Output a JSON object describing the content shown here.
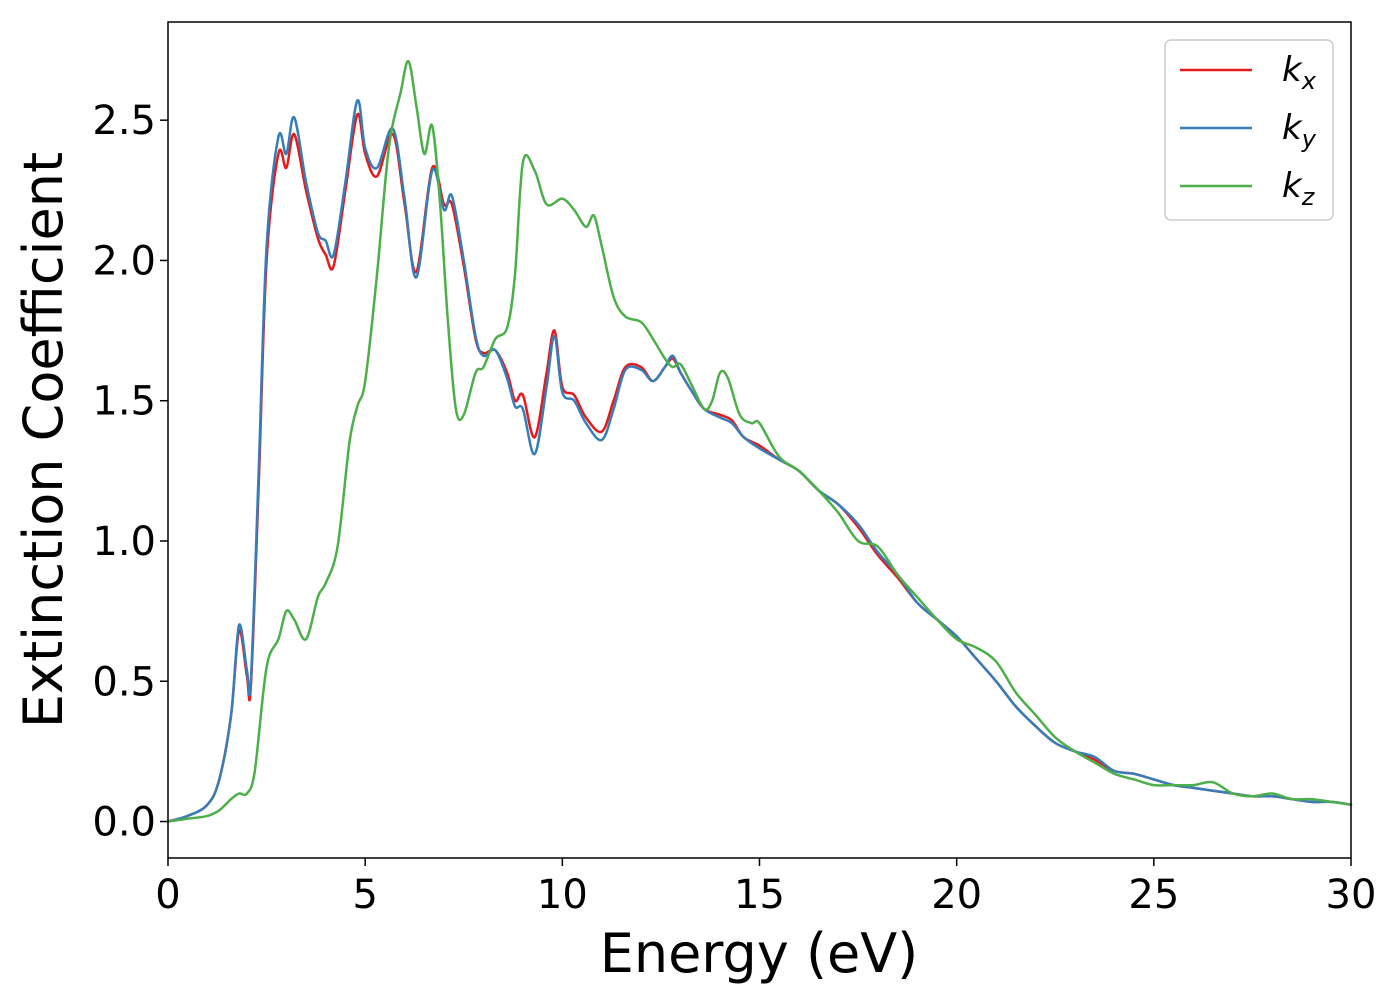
{
  "chart_data": {
    "type": "line",
    "xlabel": "Energy (eV)",
    "ylabel": "Extinction Coefficient",
    "xlim": [
      0,
      30
    ],
    "ylim": [
      -0.13,
      2.85
    ],
    "xticks": [
      0,
      5,
      10,
      15,
      20,
      25,
      30
    ],
    "xtick_labels": [
      "0",
      "5",
      "10",
      "15",
      "20",
      "25",
      "30"
    ],
    "yticks": [
      0.0,
      0.5,
      1.0,
      1.5,
      2.0,
      2.5
    ],
    "ytick_labels": [
      "0.0",
      "0.5",
      "1.0",
      "1.5",
      "2.0",
      "2.5"
    ],
    "grid": false,
    "legend_position": "top-right",
    "series": [
      {
        "name": "k",
        "subscript": "x",
        "color": "#e41a1c",
        "x": [
          0,
          0.5,
          1.0,
          1.3,
          1.6,
          1.8,
          2.0,
          2.1,
          2.3,
          2.5,
          2.8,
          3.0,
          3.2,
          3.5,
          3.8,
          4.0,
          4.2,
          4.5,
          4.8,
          5.0,
          5.3,
          5.7,
          6.0,
          6.3,
          6.7,
          7.0,
          7.2,
          7.5,
          7.8,
          8.0,
          8.3,
          8.6,
          8.8,
          9.0,
          9.3,
          9.6,
          9.8,
          10.0,
          10.3,
          10.6,
          11.0,
          11.3,
          11.6,
          12.0,
          12.3,
          12.6,
          12.8,
          13.0,
          13.3,
          13.6,
          14.0,
          14.3,
          14.6,
          15.0,
          15.5,
          16.0,
          16.5,
          17.0,
          17.5,
          18.0,
          18.5,
          19.0,
          19.5,
          20.0,
          20.5,
          21.0,
          21.5,
          22.0,
          22.5,
          23.0,
          23.5,
          24.0,
          24.5,
          25.0,
          25.5,
          26.0,
          26.5,
          27.0,
          27.5,
          28.0,
          28.5,
          29.0,
          29.5,
          30.0
        ],
        "y": [
          0.0,
          0.02,
          0.06,
          0.15,
          0.38,
          0.68,
          0.52,
          0.48,
          1.2,
          2.0,
          2.38,
          2.33,
          2.45,
          2.25,
          2.08,
          2.02,
          1.98,
          2.25,
          2.52,
          2.38,
          2.3,
          2.45,
          2.2,
          1.96,
          2.33,
          2.2,
          2.2,
          1.98,
          1.72,
          1.67,
          1.68,
          1.6,
          1.5,
          1.52,
          1.37,
          1.6,
          1.75,
          1.55,
          1.52,
          1.44,
          1.39,
          1.5,
          1.62,
          1.62,
          1.57,
          1.62,
          1.65,
          1.6,
          1.53,
          1.47,
          1.45,
          1.43,
          1.37,
          1.34,
          1.29,
          1.25,
          1.18,
          1.13,
          1.05,
          0.95,
          0.87,
          0.78,
          0.72,
          0.66,
          0.58,
          0.5,
          0.41,
          0.34,
          0.28,
          0.25,
          0.22,
          0.18,
          0.17,
          0.15,
          0.13,
          0.12,
          0.11,
          0.1,
          0.09,
          0.09,
          0.08,
          0.07,
          0.07,
          0.06
        ]
      },
      {
        "name": "k",
        "subscript": "y",
        "color": "#377eb8",
        "x": [
          0,
          0.5,
          1.0,
          1.3,
          1.6,
          1.8,
          2.0,
          2.1,
          2.3,
          2.5,
          2.8,
          3.0,
          3.2,
          3.5,
          3.8,
          4.0,
          4.2,
          4.5,
          4.8,
          5.0,
          5.3,
          5.7,
          6.0,
          6.3,
          6.7,
          7.0,
          7.2,
          7.5,
          7.8,
          8.0,
          8.3,
          8.6,
          8.8,
          9.0,
          9.3,
          9.6,
          9.8,
          10.0,
          10.3,
          10.6,
          11.0,
          11.3,
          11.6,
          12.0,
          12.3,
          12.6,
          12.8,
          13.0,
          13.3,
          13.6,
          14.0,
          14.3,
          14.6,
          15.0,
          15.5,
          16.0,
          16.5,
          17.0,
          17.5,
          18.0,
          18.5,
          19.0,
          19.5,
          20.0,
          20.5,
          21.0,
          21.5,
          22.0,
          22.5,
          23.0,
          23.5,
          24.0,
          24.5,
          25.0,
          25.5,
          26.0,
          26.5,
          27.0,
          27.5,
          28.0,
          28.5,
          29.0,
          29.5,
          30.0
        ],
        "y": [
          0.0,
          0.02,
          0.06,
          0.15,
          0.38,
          0.7,
          0.54,
          0.5,
          1.25,
          2.05,
          2.44,
          2.38,
          2.51,
          2.28,
          2.1,
          2.07,
          2.02,
          2.28,
          2.57,
          2.4,
          2.33,
          2.47,
          2.22,
          1.94,
          2.32,
          2.18,
          2.23,
          2.0,
          1.73,
          1.66,
          1.68,
          1.58,
          1.48,
          1.47,
          1.31,
          1.55,
          1.73,
          1.53,
          1.5,
          1.42,
          1.36,
          1.47,
          1.61,
          1.61,
          1.57,
          1.62,
          1.66,
          1.6,
          1.53,
          1.47,
          1.44,
          1.42,
          1.37,
          1.33,
          1.29,
          1.25,
          1.18,
          1.13,
          1.06,
          0.96,
          0.88,
          0.78,
          0.72,
          0.66,
          0.58,
          0.5,
          0.41,
          0.34,
          0.28,
          0.25,
          0.23,
          0.18,
          0.17,
          0.15,
          0.13,
          0.12,
          0.11,
          0.1,
          0.09,
          0.09,
          0.08,
          0.07,
          0.07,
          0.06
        ]
      },
      {
        "name": "k",
        "subscript": "z",
        "color": "#4daf4a",
        "x": [
          0,
          0.5,
          1.0,
          1.3,
          1.6,
          1.8,
          2.0,
          2.2,
          2.5,
          2.8,
          3.0,
          3.2,
          3.5,
          3.8,
          4.0,
          4.3,
          4.6,
          4.8,
          5.0,
          5.3,
          5.6,
          5.9,
          6.1,
          6.3,
          6.5,
          6.7,
          6.9,
          7.1,
          7.3,
          7.5,
          7.8,
          8.0,
          8.3,
          8.6,
          8.8,
          9.0,
          9.3,
          9.6,
          10.0,
          10.3,
          10.6,
          10.8,
          11.0,
          11.3,
          11.6,
          12.0,
          12.3,
          12.6,
          12.8,
          13.0,
          13.3,
          13.6,
          13.8,
          14.0,
          14.2,
          14.5,
          14.8,
          15.0,
          15.5,
          16.0,
          16.5,
          17.0,
          17.5,
          18.0,
          18.5,
          19.0,
          19.5,
          20.0,
          20.5,
          21.0,
          21.5,
          22.0,
          22.5,
          23.0,
          23.5,
          24.0,
          24.5,
          25.0,
          25.5,
          26.0,
          26.5,
          27.0,
          27.5,
          28.0,
          28.5,
          29.0,
          29.5,
          30.0
        ],
        "y": [
          0.0,
          0.01,
          0.02,
          0.04,
          0.08,
          0.1,
          0.1,
          0.18,
          0.55,
          0.65,
          0.75,
          0.72,
          0.65,
          0.8,
          0.85,
          0.98,
          1.35,
          1.48,
          1.57,
          1.95,
          2.4,
          2.6,
          2.71,
          2.55,
          2.38,
          2.48,
          2.2,
          1.78,
          1.47,
          1.45,
          1.6,
          1.62,
          1.72,
          1.76,
          1.95,
          2.35,
          2.32,
          2.2,
          2.22,
          2.18,
          2.12,
          2.16,
          2.05,
          1.87,
          1.8,
          1.78,
          1.72,
          1.65,
          1.62,
          1.63,
          1.55,
          1.47,
          1.5,
          1.6,
          1.58,
          1.45,
          1.42,
          1.42,
          1.3,
          1.25,
          1.18,
          1.1,
          1.0,
          0.98,
          0.88,
          0.8,
          0.72,
          0.65,
          0.62,
          0.57,
          0.46,
          0.38,
          0.3,
          0.25,
          0.21,
          0.17,
          0.15,
          0.13,
          0.13,
          0.13,
          0.14,
          0.1,
          0.09,
          0.1,
          0.08,
          0.08,
          0.07,
          0.06
        ]
      }
    ]
  }
}
